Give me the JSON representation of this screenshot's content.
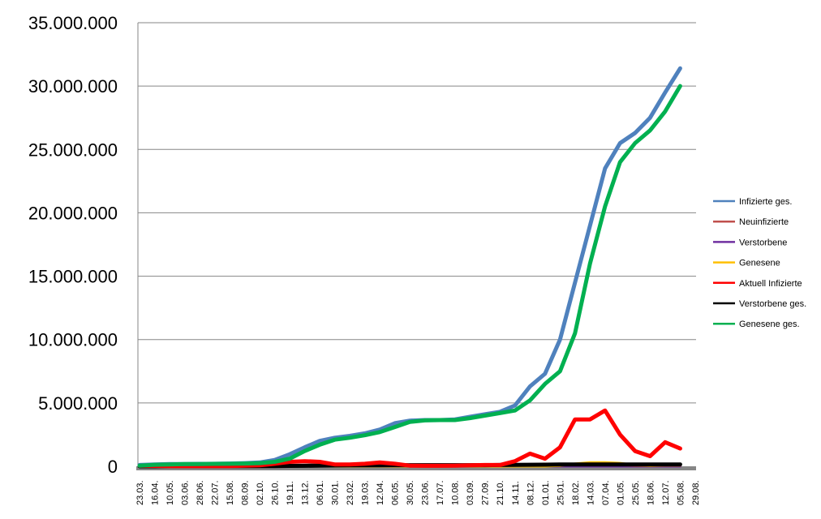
{
  "chart_data": {
    "type": "line",
    "title": "",
    "xlabel": "",
    "ylabel": "",
    "ylim": [
      0,
      35000000
    ],
    "y_ticks": [
      0,
      5000000,
      10000000,
      15000000,
      20000000,
      25000000,
      30000000,
      35000000
    ],
    "y_tick_labels": [
      "0",
      "5.000.000",
      "10.000.000",
      "15.000.000",
      "20.000.000",
      "25.000.000",
      "30.000.000",
      "35.000.000"
    ],
    "grid": "horizontal",
    "legend_position": "right",
    "x_tick_labels": [
      "23.03.",
      "16.04.",
      "10.05.",
      "03.06.",
      "28.06.",
      "22.07.",
      "15.08.",
      "08.09.",
      "02.10.",
      "26.10.",
      "19.11.",
      "13.12.",
      "06.01.",
      "30.01.",
      "23.02.",
      "19.03.",
      "12.04.",
      "06.05.",
      "30.05.",
      "23.06.",
      "17.07.",
      "10.08.",
      "03.09.",
      "27.09.",
      "21.10.",
      "14.11.",
      "08.12.",
      "01.01.",
      "25.01.",
      "18.02.",
      "14.03.",
      "07.04.",
      "01.05.",
      "25.05.",
      "18.06.",
      "12.07.",
      "05.08.",
      "29.08."
    ],
    "x": [
      "23.03.",
      "16.04.",
      "10.05.",
      "03.06.",
      "28.06.",
      "22.07.",
      "15.08.",
      "08.09.",
      "02.10.",
      "26.10.",
      "19.11.",
      "13.12.",
      "06.01.",
      "30.01.",
      "23.02.",
      "19.03.",
      "12.04.",
      "06.05.",
      "30.05.",
      "23.06.",
      "17.07.",
      "10.08.",
      "03.09.",
      "27.09.",
      "21.10.",
      "14.11.",
      "08.12.",
      "01.01.",
      "25.01.",
      "18.02.",
      "14.03.",
      "07.04.",
      "01.05.",
      "25.05.",
      "18.06.",
      "12.07.",
      "05.08."
    ],
    "series": [
      {
        "name": "Infizierte ges.",
        "color": "#4F81BD",
        "values": [
          100000,
          150000,
          170000,
          180000,
          190000,
          200000,
          220000,
          250000,
          300000,
          500000,
          950000,
          1500000,
          2000000,
          2250000,
          2400000,
          2600000,
          2900000,
          3400000,
          3600000,
          3650000,
          3650000,
          3700000,
          3900000,
          4100000,
          4300000,
          4800000,
          6300000,
          7300000,
          10000000,
          14500000,
          19000000,
          23500000,
          25500000,
          26300000,
          27500000,
          29500000,
          31400000
        ]
      },
      {
        "name": "Neuinfizierte",
        "color": "#C0504D",
        "values": [
          20000,
          10000,
          5000,
          5000,
          5000,
          5000,
          5000,
          10000,
          15000,
          20000,
          30000,
          30000,
          30000,
          20000,
          20000,
          20000,
          20000,
          20000,
          10000,
          5000,
          5000,
          5000,
          10000,
          10000,
          15000,
          30000,
          40000,
          40000,
          60000,
          150000,
          200000,
          200000,
          100000,
          50000,
          40000,
          60000,
          60000
        ]
      },
      {
        "name": "Verstorbene",
        "color": "#7030A0",
        "values": [
          0,
          0,
          0,
          0,
          0,
          0,
          0,
          0,
          0,
          0,
          0,
          0,
          0,
          0,
          0,
          0,
          0,
          0,
          0,
          0,
          0,
          0,
          0,
          0,
          0,
          0,
          0,
          0,
          0,
          0,
          0,
          0,
          0,
          0,
          0,
          0,
          0
        ]
      },
      {
        "name": "Genesene",
        "color": "#FFC000",
        "values": [
          0,
          0,
          0,
          0,
          0,
          0,
          0,
          0,
          0,
          0,
          0,
          0,
          0,
          0,
          0,
          0,
          0,
          0,
          0,
          0,
          0,
          0,
          0,
          0,
          0,
          0,
          0,
          0,
          50000,
          200000,
          300000,
          300000,
          250000,
          100000,
          50000,
          80000,
          80000
        ]
      },
      {
        "name": "Aktuell Infizierte",
        "color": "#FF0000",
        "values": [
          50000,
          30000,
          20000,
          10000,
          10000,
          10000,
          20000,
          50000,
          80000,
          200000,
          350000,
          400000,
          350000,
          150000,
          150000,
          200000,
          300000,
          200000,
          50000,
          40000,
          40000,
          50000,
          80000,
          100000,
          100000,
          400000,
          1000000,
          600000,
          1500000,
          3700000,
          3700000,
          4400000,
          2500000,
          1200000,
          800000,
          1900000,
          1400000
        ]
      },
      {
        "name": "Verstorbene ges.",
        "color": "#000000",
        "values": [
          0,
          0,
          10000,
          10000,
          10000,
          10000,
          10000,
          10000,
          10000,
          20000,
          30000,
          40000,
          60000,
          70000,
          80000,
          80000,
          80000,
          90000,
          90000,
          90000,
          90000,
          90000,
          90000,
          90000,
          100000,
          110000,
          120000,
          130000,
          140000,
          150000,
          150000,
          150000,
          150000,
          150000,
          150000,
          150000,
          150000
        ]
      },
      {
        "name": "Genesene ges.",
        "color": "#00B050",
        "values": [
          50000,
          120000,
          150000,
          170000,
          180000,
          190000,
          200000,
          220000,
          250000,
          350000,
          600000,
          1200000,
          1700000,
          2100000,
          2250000,
          2450000,
          2700000,
          3100000,
          3500000,
          3620000,
          3650000,
          3650000,
          3800000,
          4000000,
          4200000,
          4400000,
          5200000,
          6500000,
          7500000,
          10500000,
          16000000,
          20500000,
          24000000,
          25500000,
          26500000,
          28000000,
          30000000
        ]
      }
    ]
  }
}
